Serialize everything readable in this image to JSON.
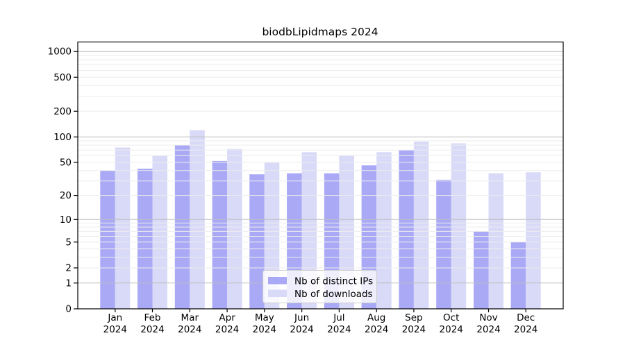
{
  "chart_data": {
    "type": "bar",
    "title": "biodbLipidmaps 2024",
    "categories": [
      "Jan",
      "Feb",
      "Mar",
      "Apr",
      "May",
      "Jun",
      "Jul",
      "Aug",
      "Sep",
      "Oct",
      "Nov",
      "Dec"
    ],
    "category_year": "2024",
    "series": [
      {
        "name": "Nb of distinct IPs",
        "color": "#a9a9f6",
        "values": [
          40,
          42,
          80,
          52,
          36,
          37,
          37,
          46,
          70,
          31,
          7,
          5
        ]
      },
      {
        "name": "Nb of downloads",
        "color": "#d9d9f8",
        "values": [
          75,
          60,
          120,
          72,
          50,
          66,
          61,
          66,
          88,
          84,
          37,
          38
        ]
      }
    ],
    "yscale": "log1p",
    "ytick_labels": [
      0,
      1,
      2,
      5,
      10,
      20,
      50,
      100,
      200,
      500,
      1000
    ],
    "ylim": [
      0,
      1290
    ],
    "grid": true,
    "legend_position": "lower center",
    "colors": {
      "major_grid": "#bdbdbd",
      "minor_grid": "#ededed",
      "frame": "#000000",
      "legend_border": "#cccccc"
    }
  }
}
